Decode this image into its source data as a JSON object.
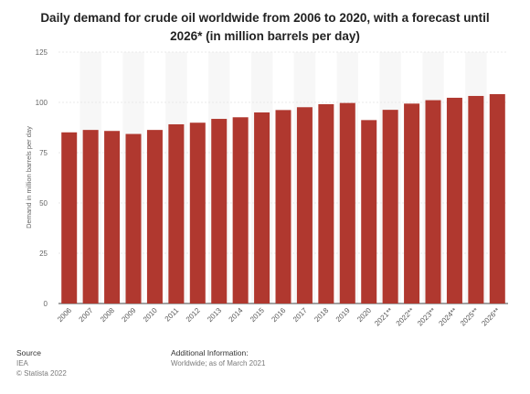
{
  "chart_data": {
    "type": "bar",
    "title": "Daily demand for crude oil worldwide from 2006 to 2020, with a forecast until 2026* (in million barrels per day)",
    "xlabel": "",
    "ylabel": "Demand in million barrels per day",
    "ylim": [
      0,
      125
    ],
    "yticks": [
      0,
      25,
      50,
      75,
      100,
      125
    ],
    "grid": true,
    "bar_color": "#b0382f",
    "categories": [
      "2006",
      "2007",
      "2008",
      "2009",
      "2010",
      "2011",
      "2012",
      "2013",
      "2014",
      "2015",
      "2016",
      "2017",
      "2018",
      "2019",
      "2020",
      "2021**",
      "2022**",
      "2023**",
      "2024**",
      "2025**",
      "2026**"
    ],
    "values": [
      85.1,
      86.3,
      85.8,
      84.3,
      86.3,
      89.1,
      89.9,
      91.8,
      92.6,
      95.0,
      96.2,
      97.6,
      99.1,
      99.7,
      91.2,
      96.3,
      99.4,
      101.1,
      102.3,
      103.2,
      104.1
    ]
  },
  "footer": {
    "source_label": "Source",
    "source_value": "IEA",
    "copyright": "© Statista 2022",
    "info_label": "Additional Information:",
    "info_value": "Worldwide; as of March 2021"
  }
}
